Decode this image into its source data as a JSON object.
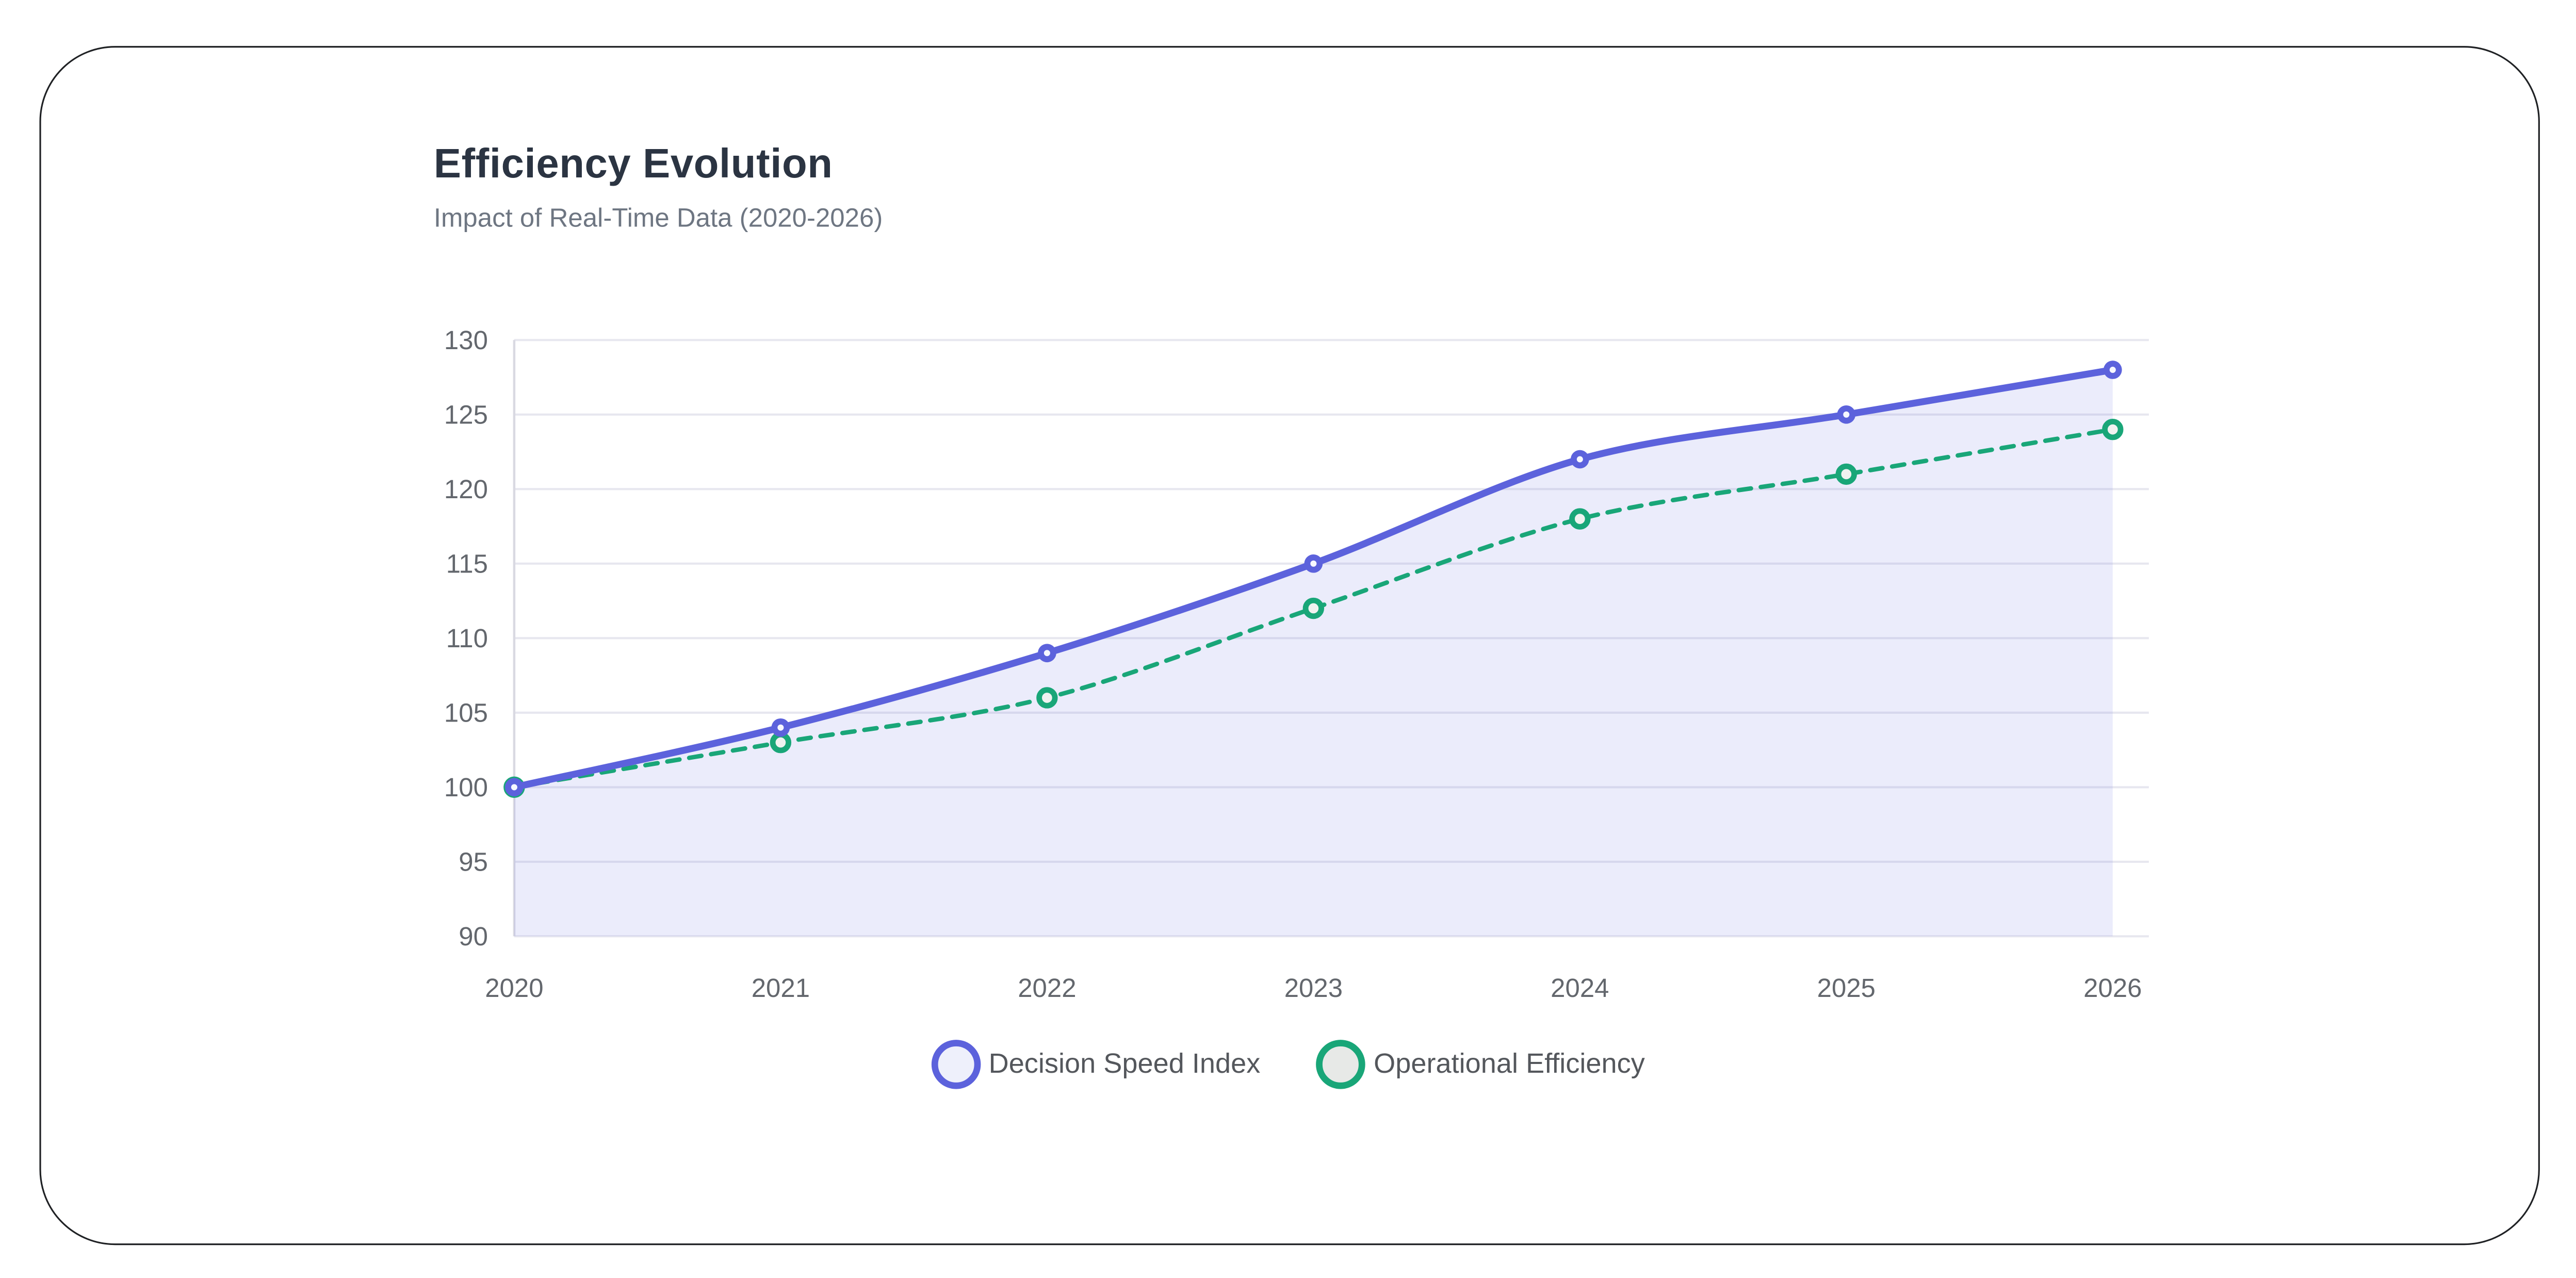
{
  "chart_data": {
    "type": "line",
    "title": "Efficiency Evolution",
    "subtitle": "Impact of Real-Time Data (2020-2026)",
    "x": [
      "2020",
      "2021",
      "2022",
      "2023",
      "2024",
      "2025",
      "2026"
    ],
    "series": [
      {
        "name": "Decision Speed Index",
        "values": [
          100,
          104,
          109,
          115,
          122,
          125,
          128
        ],
        "color": "#5c62dc",
        "line_style": "solid",
        "fill_area": true,
        "area_fill": "rgba(92,98,220,0.12)",
        "legend_fill": "#eef0fb",
        "point_style": "filled-circle"
      },
      {
        "name": "Operational Efficiency",
        "values": [
          100,
          103,
          106,
          112,
          118,
          121,
          124
        ],
        "color": "#19a678",
        "line_style": "dashed",
        "fill_area": false,
        "area_fill": "",
        "legend_fill": "#e7e9e7",
        "point_style": "ring"
      }
    ],
    "ylim": [
      90,
      130
    ],
    "yticks": [
      90,
      95,
      100,
      105,
      110,
      115,
      120,
      125,
      130
    ],
    "grid": "horizontal",
    "legend_position": "bottom",
    "grid_color": "#e7e7ef",
    "axis_color": "#d9d9e2",
    "tick_label_color": "#63676d"
  }
}
